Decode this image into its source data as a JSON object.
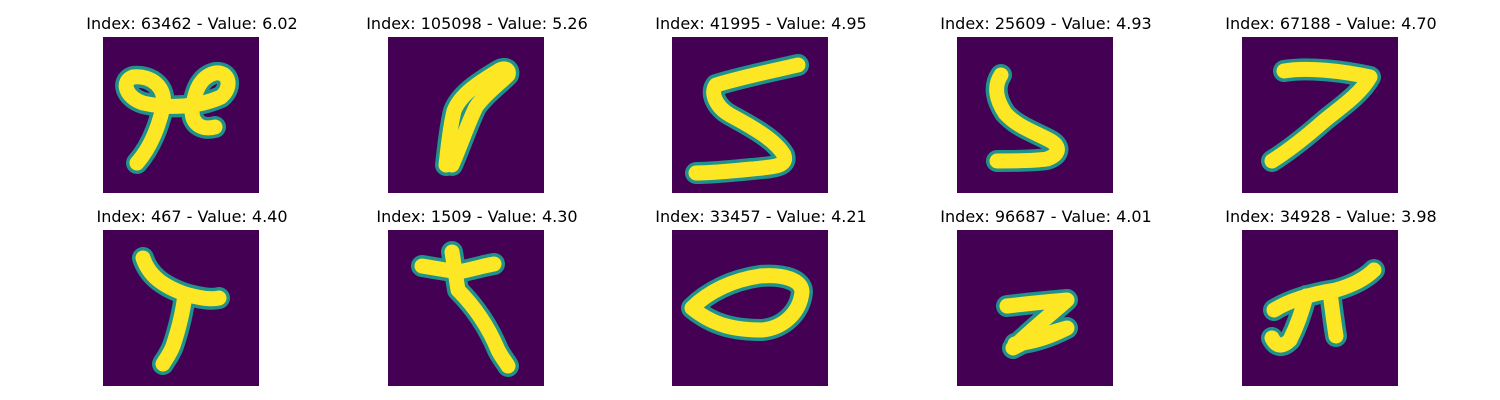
{
  "figure": {
    "colormap": "viridis",
    "background_color": "#440154",
    "stroke_color": "#fde725",
    "edge_color": "#21918c"
  },
  "panels": [
    {
      "index": 63462,
      "value": "6.02",
      "title": "Index: 63462 - Value: 6.02",
      "glyph": "ampersand-like-loop"
    },
    {
      "index": 105098,
      "value": "5.26",
      "title": "Index: 105098 - Value: 5.26",
      "glyph": "slanted-stroke"
    },
    {
      "index": 41995,
      "value": "4.95",
      "title": "Index: 41995 - Value: 4.95",
      "glyph": "digit-5"
    },
    {
      "index": 25609,
      "value": "4.93",
      "title": "Index: 25609 - Value: 4.93",
      "glyph": "reversed-s-bracket"
    },
    {
      "index": 67188,
      "value": "4.70",
      "title": "Index: 67188 - Value: 4.70",
      "glyph": "digit-7"
    },
    {
      "index": 467,
      "value": "4.40",
      "title": "Index: 467 - Value: 4.40",
      "glyph": "y-shape-blob"
    },
    {
      "index": 1509,
      "value": "4.30",
      "title": "Index: 1509 - Value: 4.30",
      "glyph": "cross-with-tail"
    },
    {
      "index": 33457,
      "value": "4.21",
      "title": "Index: 33457 - Value: 4.21",
      "glyph": "flat-zero"
    },
    {
      "index": 96687,
      "value": "4.01",
      "title": "Index: 96687 - Value: 4.01",
      "glyph": "letter-z"
    },
    {
      "index": 34928,
      "value": "3.98",
      "title": "Index: 34928 - Value: 3.98",
      "glyph": "pi-shape"
    }
  ]
}
